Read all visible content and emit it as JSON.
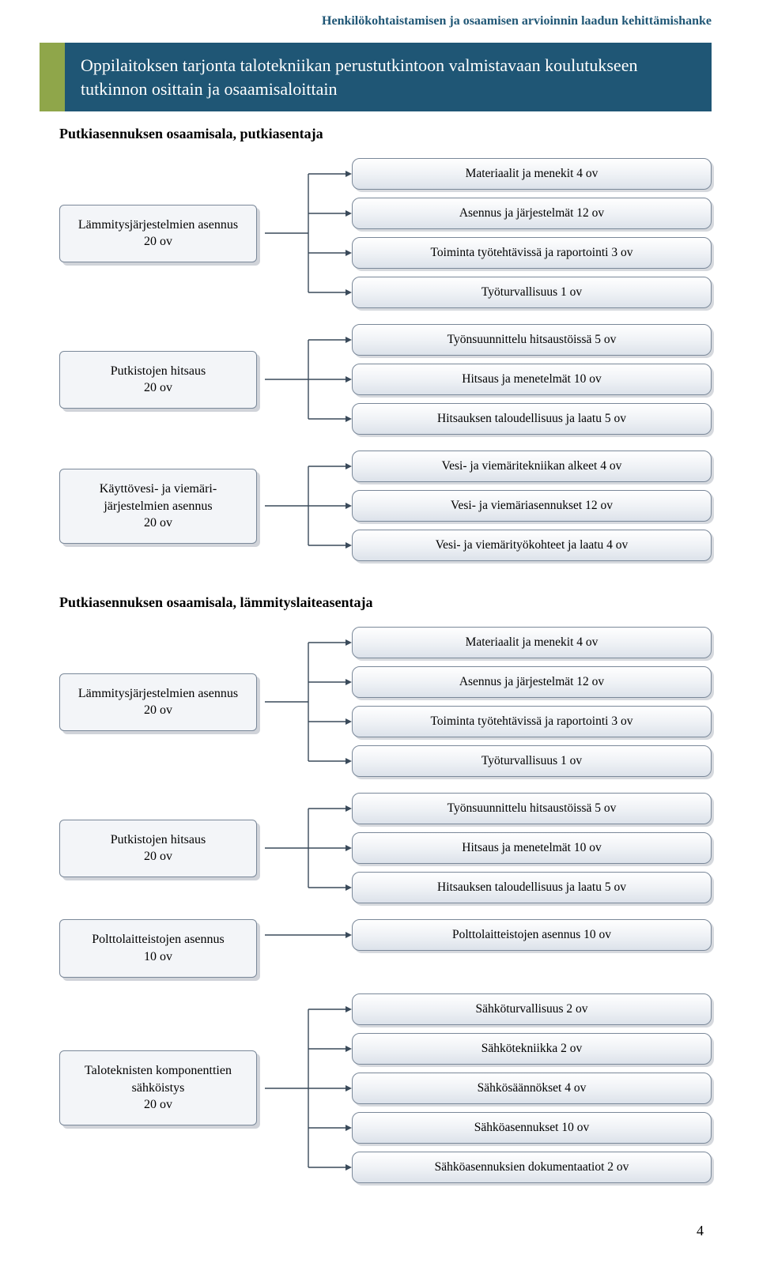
{
  "header": "Henkilökohtaistamisen ja osaamisen arvioinnin laadun kehittämishanke",
  "header_color": "#1f5675",
  "title": "Oppilaitoksen tarjonta talotekniikan perustutkintoon valmistavaan koulutukseen tutkinnon osittain ja osaamisaloittain",
  "band_bg": "#1f5675",
  "band_accent": "#8fa64a",
  "sections": [
    {
      "heading": "Putkiasennuksen osaamisala, putkiasentaja",
      "groups": [
        {
          "left": "Lämmitysjärjestelmien asennus\n20 ov",
          "right": [
            "Materiaalit ja menekit 4 ov",
            "Asennus ja järjestelmät 12 ov",
            "Toiminta työtehtävissä ja raportointi 3 ov",
            "Työturvallisuus 1 ov"
          ]
        },
        {
          "left": "Putkistojen hitsaus\n20 ov",
          "right": [
            "Työnsuunnittelu hitsaustöissä 5 ov",
            "Hitsaus ja menetelmät 10 ov",
            "Hitsauksen taloudellisuus ja laatu 5 ov"
          ]
        },
        {
          "left": "Käyttövesi- ja viemäri-\njärjestelmien asennus\n20 ov",
          "right": [
            "Vesi- ja viemäritekniikan alkeet 4 ov",
            "Vesi- ja viemäriasennukset 12 ov",
            "Vesi- ja viemärityökohteet ja laatu 4 ov"
          ]
        }
      ]
    },
    {
      "heading": "Putkiasennuksen osaamisala, lämmityslaiteasentaja",
      "groups": [
        {
          "left": "Lämmitysjärjestelmien asennus\n20 ov",
          "right": [
            "Materiaalit ja menekit 4 ov",
            "Asennus ja järjestelmät 12 ov",
            "Toiminta työtehtävissä ja raportointi 3 ov",
            "Työturvallisuus 1 ov"
          ]
        },
        {
          "left": "Putkistojen hitsaus\n20 ov",
          "right": [
            "Työnsuunnittelu hitsaustöissä 5 ov",
            "Hitsaus ja menetelmät 10 ov",
            "Hitsauksen taloudellisuus ja laatu 5 ov"
          ]
        },
        {
          "left": "Polttolaitteistojen asennus\n10 ov",
          "right": [
            "Polttolaitteistojen asennus 10 ov"
          ]
        },
        {
          "left": "Taloteknisten komponenttien\nsähköistys\n20 ov",
          "right": [
            "Sähköturvallisuus 2 ov",
            "Sähkötekniikka 2 ov",
            "Sähkösäännökset 4 ov",
            "Sähköasennukset 10 ov",
            "Sähköasennuksien dokumentaatiot 2 ov"
          ]
        }
      ]
    }
  ],
  "connector_color": "#3a4a5a",
  "page_number": "4",
  "right_box_h": 40,
  "right_box_gap": 10
}
